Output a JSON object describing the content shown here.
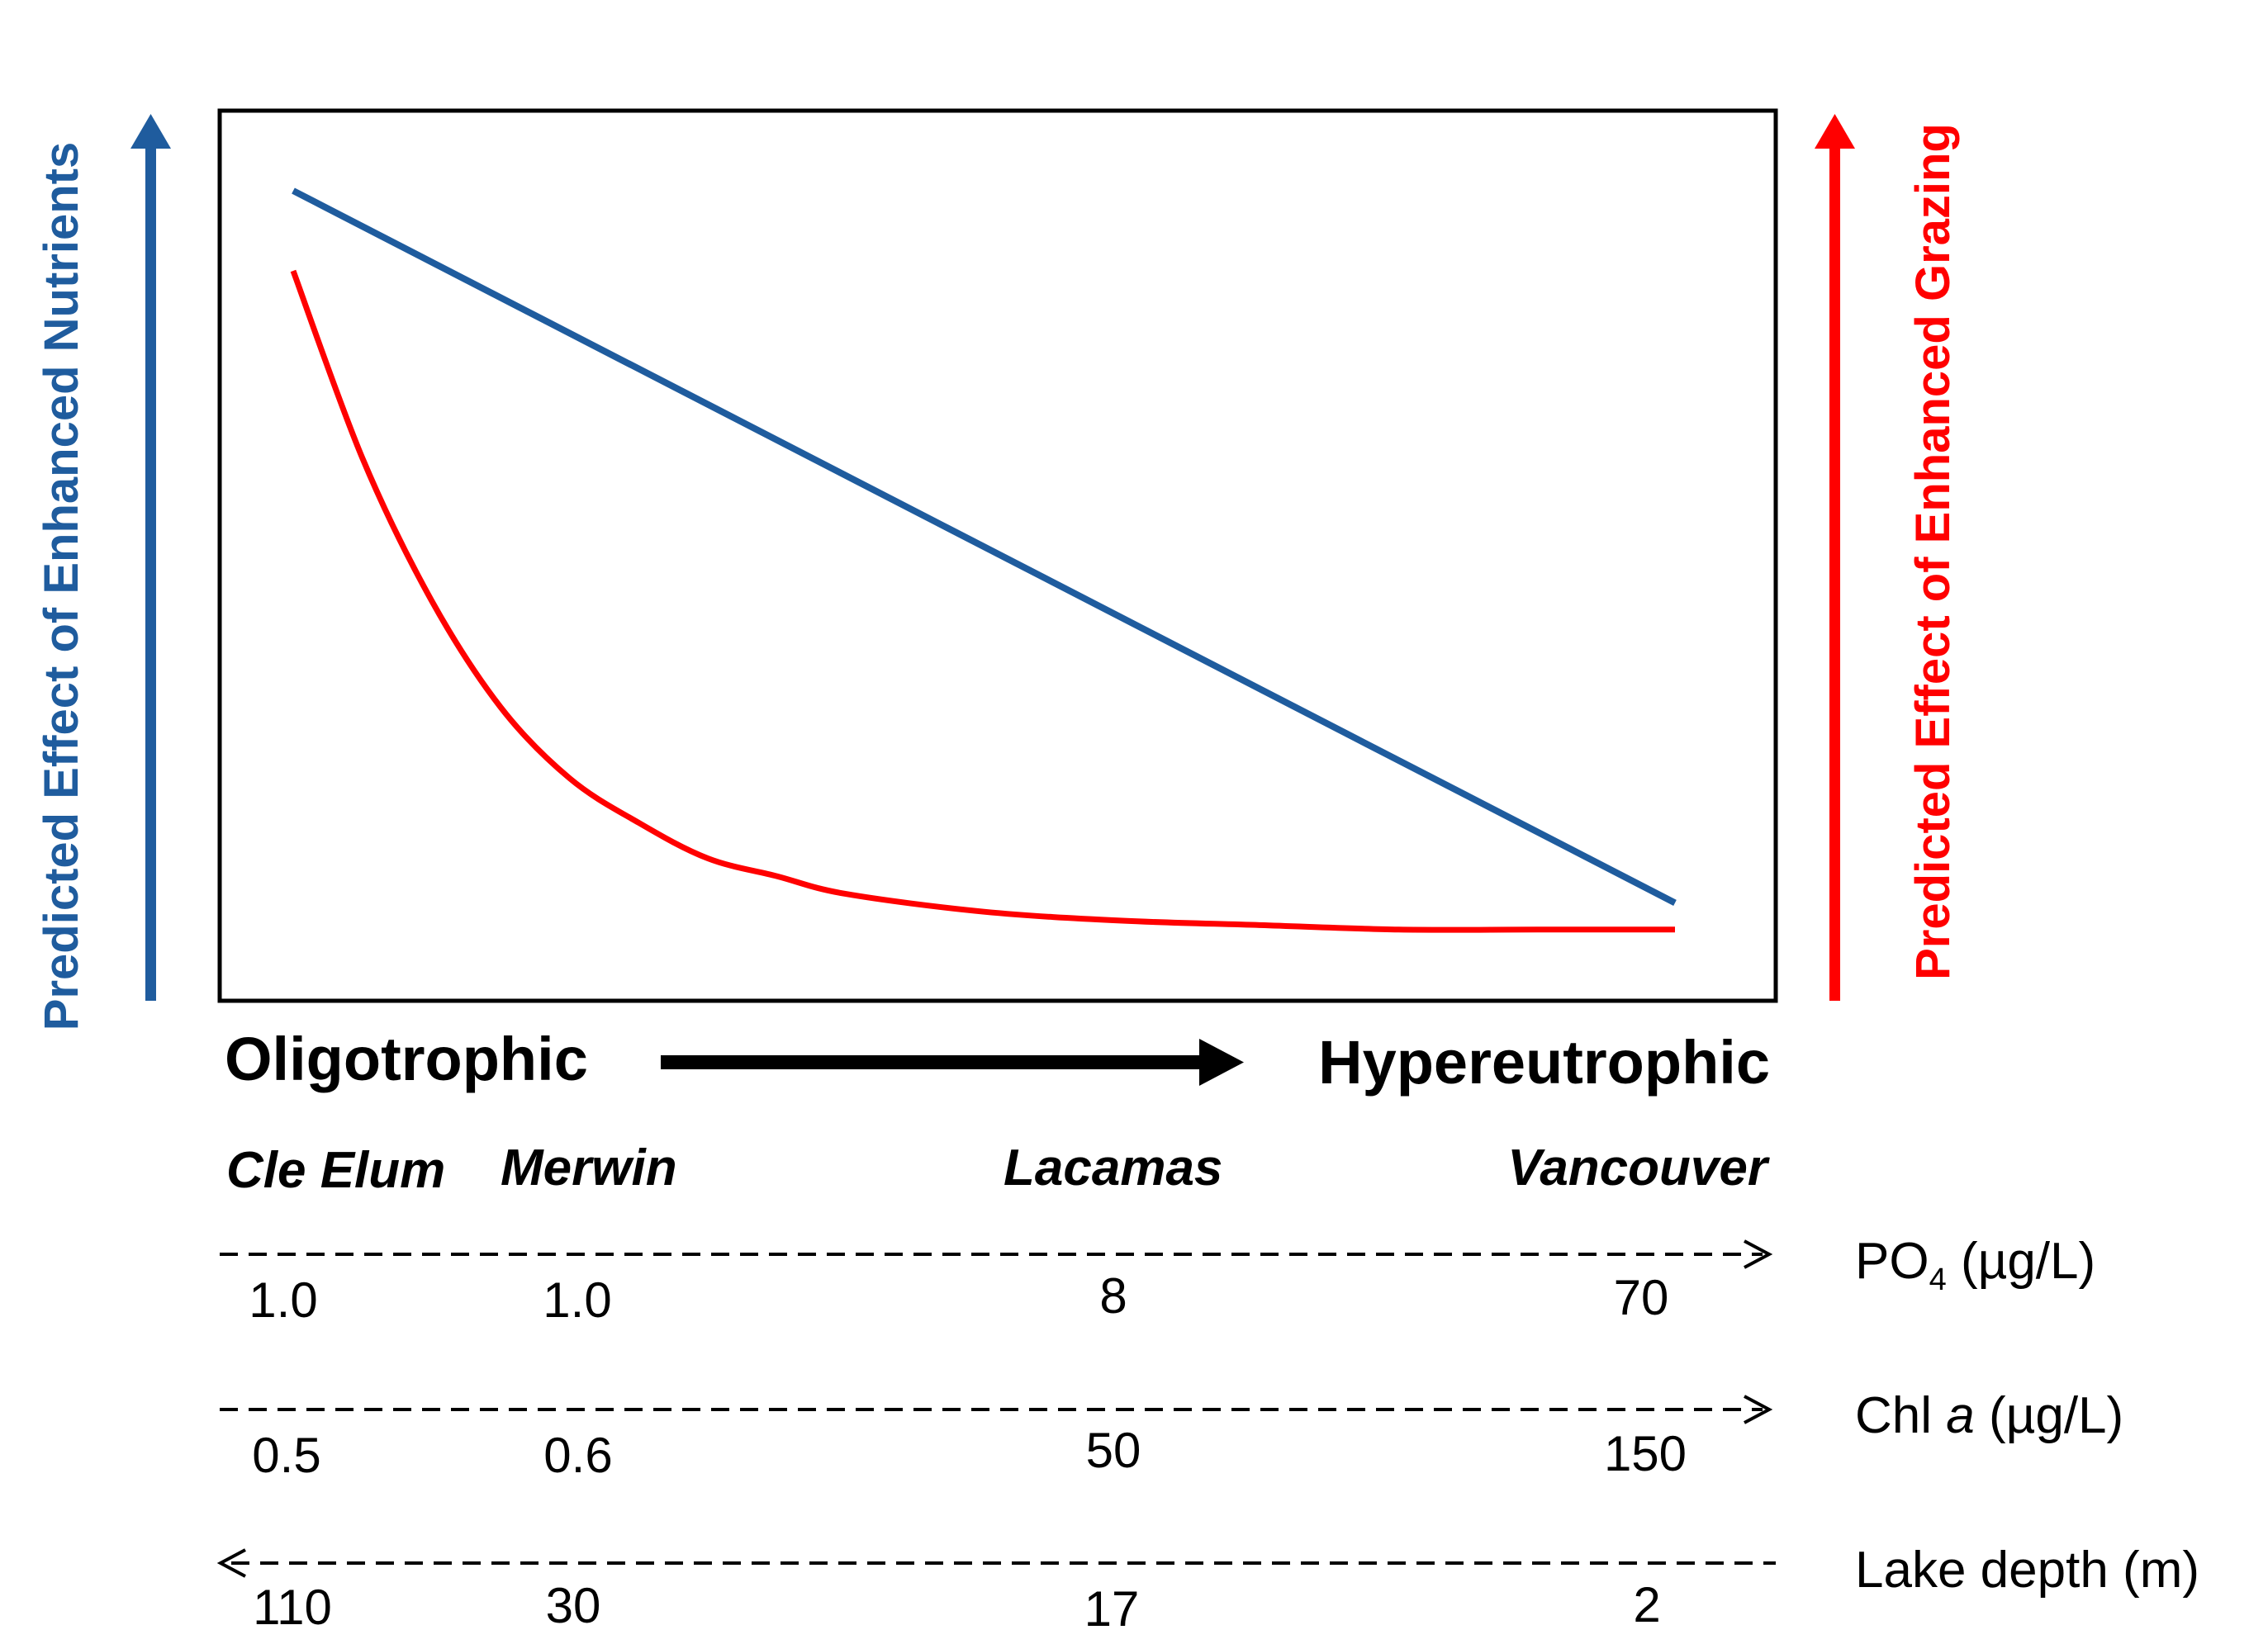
{
  "chart_data": {
    "type": "line",
    "title": "",
    "x_axis": {
      "start_label": "Oligotrophic",
      "end_label": "Hypereutrophic"
    },
    "left_axis_label": "Predicted Effect of Enhanced Nutrients",
    "right_axis_label": "Predicted Effect of Enhanced Grazing",
    "lakes": [
      "Cle Elum",
      "Merwin",
      "Lacamas",
      "Vancouver"
    ],
    "series": [
      {
        "name": "Predicted Effect of Enhanced Nutrients",
        "color": "#1f5c9e",
        "shape": "linear decrease",
        "x": [
          0,
          1
        ],
        "y": [
          0.91,
          0.11
        ]
      },
      {
        "name": "Predicted Effect of Enhanced Grazing",
        "color": "#ff0000",
        "shape": "exponential decay",
        "x": [
          0,
          0.05,
          0.1,
          0.15,
          0.2,
          0.25,
          0.3,
          0.35,
          0.4,
          0.5,
          0.6,
          0.7,
          0.8,
          0.9,
          1.0
        ],
        "y": [
          0.82,
          0.61,
          0.45,
          0.33,
          0.25,
          0.2,
          0.16,
          0.14,
          0.12,
          0.1,
          0.09,
          0.085,
          0.08,
          0.08,
          0.08
        ]
      }
    ],
    "scales": [
      {
        "label_main": "PO",
        "label_sub": "4",
        "label_rest": " (µg/L)",
        "direction": "right",
        "values": [
          "1.0",
          "1.0",
          "8",
          "70"
        ]
      },
      {
        "label_main": "Chl ",
        "label_italic": "a",
        "label_rest": " (µg/L)",
        "direction": "right",
        "values": [
          "0.5",
          "0.6",
          "50",
          "150"
        ]
      },
      {
        "label_main": "Lake depth (m)",
        "direction": "left",
        "values": [
          "110",
          "30",
          "17",
          "2"
        ]
      }
    ]
  },
  "colors": {
    "nutrients": "#1f5c9e",
    "grazing": "#ff0000",
    "black": "#000000"
  }
}
